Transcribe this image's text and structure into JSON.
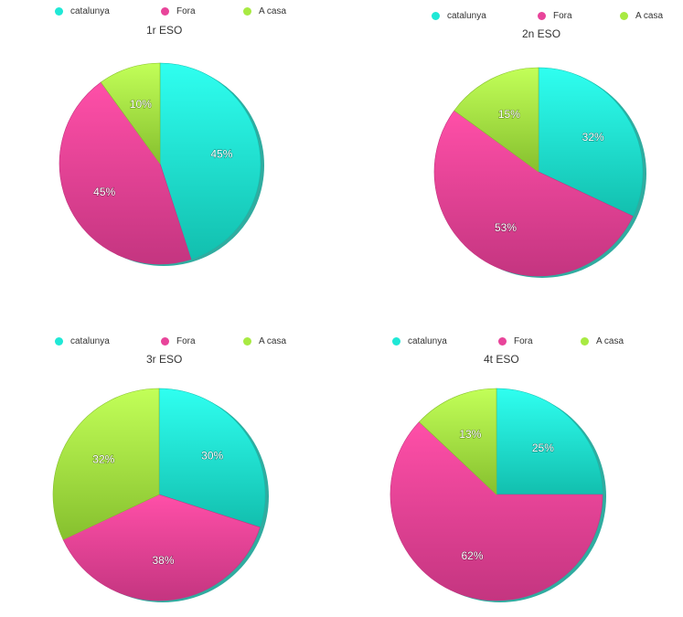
{
  "colors": {
    "catalunya": "#1fe8d6",
    "catalunya_light": "#2ffff0",
    "catalunya_dark": "#12bfae",
    "fora": "#e8449a",
    "fora_light": "#ff4fa8",
    "fora_dark": "#c43580",
    "a_casa": "#a8ea42",
    "a_casa_light": "#c2ff58",
    "a_casa_dark": "#86c02e",
    "text": "#333333"
  },
  "legend": [
    {
      "key": "catalunya",
      "label": "catalunya"
    },
    {
      "key": "fora",
      "label": "Fora"
    },
    {
      "key": "a_casa",
      "label": "A casa"
    }
  ],
  "chart_data": [
    {
      "type": "pie",
      "title": "1r ESO",
      "legend_position": "top",
      "slices": [
        {
          "name": "catalunya",
          "value": 45,
          "label": "45%"
        },
        {
          "name": "Fora",
          "value": 45,
          "label": "45%"
        },
        {
          "name": "A casa",
          "value": 10,
          "label": "10%"
        }
      ]
    },
    {
      "type": "pie",
      "title": "2n ESO",
      "legend_position": "top",
      "slices": [
        {
          "name": "catalunya",
          "value": 32,
          "label": "32%"
        },
        {
          "name": "Fora",
          "value": 53,
          "label": "53%"
        },
        {
          "name": "A casa",
          "value": 15,
          "label": "15%"
        }
      ]
    },
    {
      "type": "pie",
      "title": "3r ESO",
      "legend_position": "top",
      "slices": [
        {
          "name": "catalunya",
          "value": 30,
          "label": "30%"
        },
        {
          "name": "Fora",
          "value": 38,
          "label": "38%"
        },
        {
          "name": "A casa",
          "value": 32,
          "label": "32%"
        }
      ]
    },
    {
      "type": "pie",
      "title": "4t ESO",
      "legend_position": "top",
      "slices": [
        {
          "name": "catalunya",
          "value": 25,
          "label": "25%"
        },
        {
          "name": "Fora",
          "value": 62,
          "label": "62%"
        },
        {
          "name": "A casa",
          "value": 13,
          "label": "13%"
        }
      ]
    }
  ]
}
